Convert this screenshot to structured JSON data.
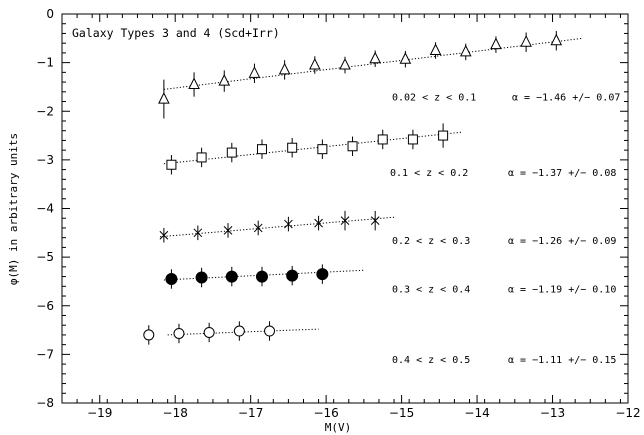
{
  "chart_data": {
    "type": "scatter",
    "title": "Galaxy Types 3 and 4 (Scd+Irr)",
    "xlabel": "M(V)",
    "ylabel": "φ(M) in arbitrary units",
    "xlim": [
      -19.5,
      -12
    ],
    "ylim": [
      -8,
      0
    ],
    "xticks": [
      -19,
      -18,
      -17,
      -16,
      -15,
      -14,
      -13,
      -12
    ],
    "yticks": [
      0,
      -1,
      -2,
      -3,
      -4,
      -5,
      -6,
      -7,
      -8
    ],
    "xtick_labels": [
      "−19",
      "−18",
      "−17",
      "−16",
      "−15",
      "−14",
      "−13",
      "−12"
    ],
    "ytick_labels": [
      "0",
      "−1",
      "−2",
      "−3",
      "−4",
      "−5",
      "−6",
      "−7",
      "−8"
    ],
    "grid": false,
    "series": [
      {
        "name": "0.02 < z < 0.1",
        "alpha": "α = −1.46 +/− 0.07",
        "marker": "open-triangle",
        "x": [
          -18.15,
          -17.75,
          -17.35,
          -16.95,
          -16.55,
          -16.15,
          -15.75,
          -15.35,
          -14.95,
          -14.55,
          -14.15,
          -13.75,
          -13.35,
          -12.95
        ],
        "y": [
          -1.75,
          -1.45,
          -1.38,
          -1.22,
          -1.15,
          -1.05,
          -1.05,
          -0.92,
          -0.93,
          -0.75,
          -0.78,
          -0.63,
          -0.58,
          -0.55
        ],
        "yerr": [
          0.4,
          0.25,
          0.22,
          0.2,
          0.2,
          0.18,
          0.17,
          0.17,
          0.17,
          0.17,
          0.17,
          0.17,
          0.2,
          0.2
        ],
        "fit_x": [
          -18.15,
          -12.6
        ],
        "fit_y": [
          -1.55,
          -0.5
        ]
      },
      {
        "name": "0.1 < z < 0.2",
        "alpha": "α = −1.37 +/− 0.08",
        "marker": "open-square",
        "x": [
          -18.05,
          -17.65,
          -17.25,
          -16.85,
          -16.45,
          -16.05,
          -15.65,
          -15.25,
          -14.85,
          -14.45
        ],
        "y": [
          -3.1,
          -2.95,
          -2.85,
          -2.78,
          -2.75,
          -2.78,
          -2.72,
          -2.58,
          -2.58,
          -2.5
        ],
        "yerr": [
          0.2,
          0.2,
          0.2,
          0.2,
          0.2,
          0.2,
          0.2,
          0.2,
          0.2,
          0.25
        ],
        "fit_x": [
          -18.15,
          -14.2
        ],
        "fit_y": [
          -3.08,
          -2.43
        ]
      },
      {
        "name": "0.2 < z < 0.3",
        "alpha": "α = −1.26 +/− 0.09",
        "marker": "cross",
        "x": [
          -18.15,
          -17.7,
          -17.3,
          -16.9,
          -16.5,
          -16.1,
          -15.75,
          -15.35
        ],
        "y": [
          -4.55,
          -4.5,
          -4.45,
          -4.4,
          -4.32,
          -4.3,
          -4.25,
          -4.25
        ],
        "yerr": [
          0.15,
          0.15,
          0.15,
          0.15,
          0.15,
          0.15,
          0.2,
          0.2
        ],
        "fit_x": [
          -18.2,
          -15.1
        ],
        "fit_y": [
          -4.58,
          -4.18
        ]
      },
      {
        "name": "0.3 < z < 0.4",
        "alpha": "α = −1.19 +/− 0.10",
        "marker": "filled-circle",
        "x": [
          -18.05,
          -17.65,
          -17.25,
          -16.85,
          -16.45,
          -16.05
        ],
        "y": [
          -5.45,
          -5.42,
          -5.4,
          -5.4,
          -5.38,
          -5.35
        ],
        "yerr": [
          0.2,
          0.2,
          0.2,
          0.2,
          0.2,
          0.2
        ],
        "fit_x": [
          -18.15,
          -15.5
        ],
        "fit_y": [
          -5.47,
          -5.27
        ]
      },
      {
        "name": "0.4 < z < 0.5",
        "alpha": "α = −1.11 +/− 0.15",
        "marker": "open-circle",
        "x": [
          -18.35,
          -17.95,
          -17.55,
          -17.15,
          -16.75
        ],
        "y": [
          -6.6,
          -6.57,
          -6.55,
          -6.52,
          -6.52
        ],
        "yerr": [
          0.2,
          0.2,
          0.2,
          0.2,
          0.2
        ],
        "fit_x": [
          -18.1,
          -16.1
        ],
        "fit_y": [
          -6.6,
          -6.48
        ]
      }
    ]
  }
}
